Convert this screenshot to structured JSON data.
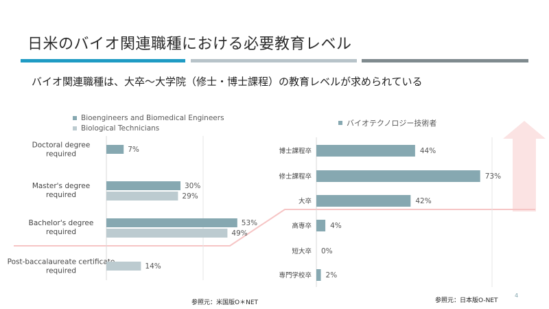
{
  "slide": {
    "title": "日米のバイオ関連職種における必要教育レベル",
    "subtitle": "バイオ関連職種は、大卒～大学院（修士・博士課程）の教育レベルが求められている",
    "source_us": "参照元：米国版O＊NET",
    "source_jp": "参照元：日本版O-NET",
    "page_number": "4"
  },
  "colors": {
    "strip_1": "#1f9bc4",
    "strip_2": "#b7c3c9",
    "strip_3": "#7f8a8e",
    "series_dark": "#86a8b1",
    "series_light": "#bccbd0",
    "highlight_line": "#f6c4c4",
    "arrow": "#fbe3e3"
  },
  "chart_data": [
    {
      "type": "bar",
      "orientation": "horizontal",
      "categories": [
        "Doctoral degree required",
        "Master's degree required",
        "Bachelor's degree required",
        "Post-baccalaureate certificate required"
      ],
      "series": [
        {
          "name": "Bioengineers and Biomedical Engineers",
          "values": [
            7,
            30,
            53,
            null
          ]
        },
        {
          "name": "Biological Technicians",
          "values": [
            null,
            29,
            49,
            14
          ]
        }
      ],
      "value_labels": {
        "Bioengineers and Biomedical Engineers": [
          "7%",
          "30%",
          "53%",
          ""
        ],
        "Biological Technicians": [
          "",
          "29%",
          "49%",
          "14%"
        ]
      },
      "legend_position": "top",
      "grid": false,
      "xlim": [
        0,
        100
      ]
    },
    {
      "type": "bar",
      "orientation": "horizontal",
      "categories": [
        "博士課程卒",
        "修士課程卒",
        "大卒",
        "高専卒",
        "短大卒",
        "専門学校卒"
      ],
      "series": [
        {
          "name": "バイオテクノロジー技術者",
          "values": [
            44,
            73,
            42,
            4,
            0,
            2
          ]
        }
      ],
      "value_labels": [
        "44%",
        "73%",
        "42%",
        "4%",
        "0%",
        "2%"
      ],
      "legend_position": "top",
      "grid": false,
      "xlim": [
        0,
        100
      ]
    }
  ]
}
